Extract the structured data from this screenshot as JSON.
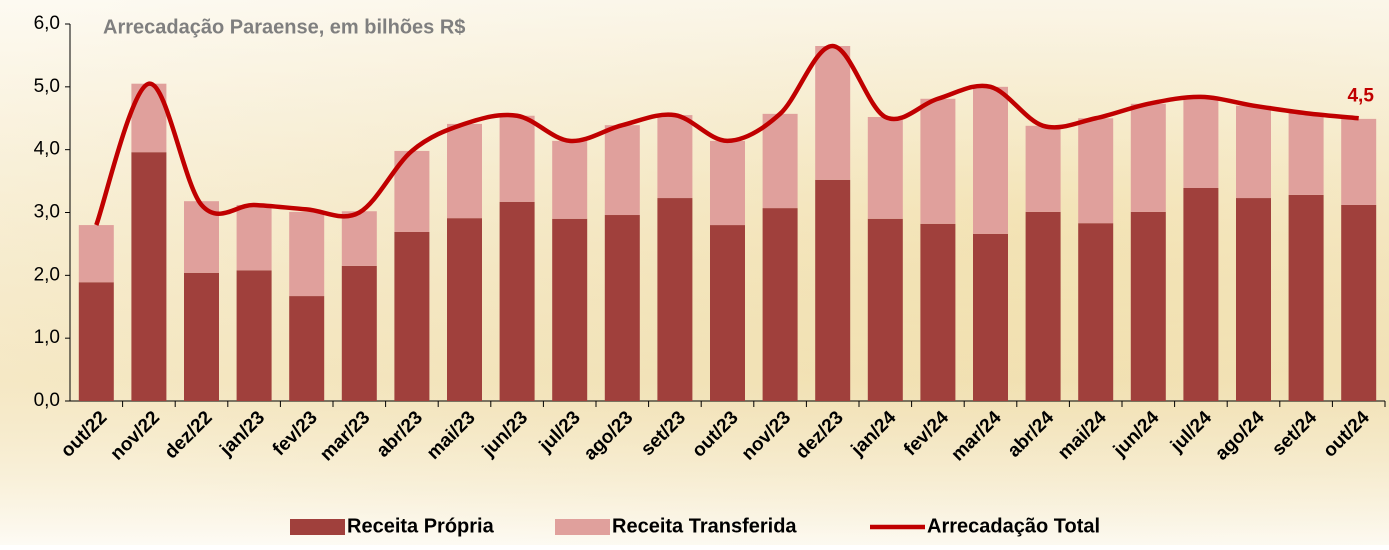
{
  "chart_data": {
    "type": "bar-line",
    "title": "Arrecadação Paraense, em bilhões R$",
    "categories": [
      "out/22",
      "nov/22",
      "dez/22",
      "jan/23",
      "fev/23",
      "mar/23",
      "abr/23",
      "mai/23",
      "jun/23",
      "jul/23",
      "ago/23",
      "set/23",
      "out/23",
      "nov/23",
      "dez/23",
      "jan/24",
      "fev/24",
      "mar/24",
      "abr/24",
      "mai/24",
      "jun/24",
      "jul/24",
      "ago/24",
      "set/24",
      "out/24"
    ],
    "series": [
      {
        "name": "Receita Própria",
        "type": "bar",
        "color": "#a0403c",
        "values": [
          1.89,
          3.96,
          2.04,
          2.08,
          1.67,
          2.15,
          2.69,
          2.91,
          3.17,
          2.9,
          2.96,
          3.23,
          2.8,
          3.07,
          3.52,
          2.9,
          2.82,
          2.66,
          3.01,
          2.83,
          3.01,
          3.39,
          3.23,
          3.28,
          3.12
        ]
      },
      {
        "name": "Receita Transferida",
        "type": "bar",
        "color": "#e0a09c",
        "values": [
          0.91,
          1.09,
          1.14,
          1.04,
          1.34,
          0.87,
          1.29,
          1.5,
          1.37,
          1.24,
          1.43,
          1.32,
          1.34,
          1.5,
          2.13,
          1.62,
          1.99,
          2.34,
          1.37,
          1.67,
          1.72,
          1.45,
          1.47,
          1.3,
          1.37
        ]
      },
      {
        "name": "Arrecadação Total",
        "type": "line",
        "color": "#c00000",
        "values": [
          2.8,
          5.05,
          3.12,
          3.12,
          3.05,
          3.0,
          3.98,
          4.41,
          4.54,
          4.14,
          4.39,
          4.55,
          4.14,
          4.57,
          5.65,
          4.52,
          4.81,
          5.0,
          4.38,
          4.5,
          4.73,
          4.84,
          4.7,
          4.58,
          4.5
        ],
        "value_labels": [
          null,
          null,
          null,
          null,
          null,
          null,
          null,
          null,
          null,
          null,
          null,
          null,
          null,
          null,
          null,
          null,
          null,
          null,
          null,
          null,
          null,
          null,
          null,
          null,
          "4,5"
        ]
      }
    ],
    "ylim": [
      0,
      6
    ],
    "yticks": [
      {
        "value": 0,
        "label": "0,0"
      },
      {
        "value": 1,
        "label": "1,0"
      },
      {
        "value": 2,
        "label": "2,0"
      },
      {
        "value": 3,
        "label": "3,0"
      },
      {
        "value": 4,
        "label": "4,0"
      },
      {
        "value": 5,
        "label": "5,0"
      },
      {
        "value": 6,
        "label": "6,0"
      }
    ],
    "stacked": true
  }
}
